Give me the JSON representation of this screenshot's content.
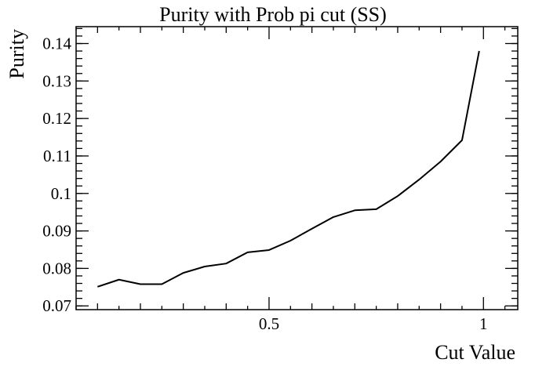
{
  "chart_data": {
    "type": "line",
    "title": "Purity with Prob pi cut (SS)",
    "xlabel": "Cut Value",
    "ylabel": "Purity",
    "xlim": [
      0.05,
      1.08
    ],
    "ylim": [
      0.069,
      0.1445
    ],
    "grid": false,
    "legend": "none",
    "x_major_ticks": [
      0.5,
      1.0
    ],
    "x_tick_labels": [
      "0.5",
      "1"
    ],
    "y_major_ticks": [
      0.07,
      0.08,
      0.09,
      0.1,
      0.11,
      0.12,
      0.13,
      0.14
    ],
    "y_tick_labels": [
      "0.07",
      "0.08",
      "0.09",
      "0.1",
      "0.11",
      "0.12",
      "0.13",
      "0.14"
    ],
    "series": [
      {
        "color": "#000000",
        "x": [
          0.1,
          0.15,
          0.2,
          0.25,
          0.3,
          0.35,
          0.4,
          0.45,
          0.5,
          0.55,
          0.6,
          0.65,
          0.7,
          0.75,
          0.8,
          0.85,
          0.9,
          0.95,
          0.99
        ],
        "y": [
          0.0751,
          0.077,
          0.0758,
          0.0758,
          0.0788,
          0.0805,
          0.0813,
          0.0843,
          0.0849,
          0.0874,
          0.0906,
          0.0937,
          0.0955,
          0.0958,
          0.0993,
          0.1037,
          0.1085,
          0.1142,
          0.138
        ]
      }
    ]
  }
}
